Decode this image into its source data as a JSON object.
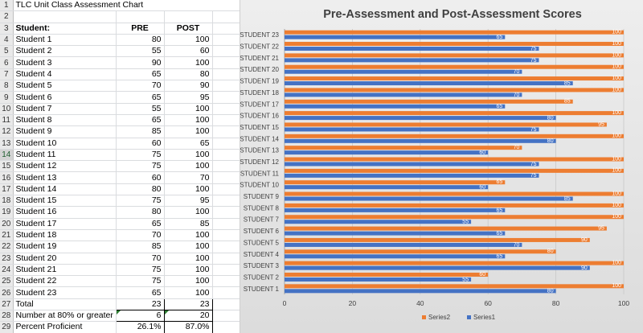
{
  "sheet": {
    "title": "TLC Unit Class Assessment Chart",
    "headers": {
      "label": "Student:",
      "pre": "PRE",
      "post": "POST"
    },
    "students": [
      {
        "name": "Student 1",
        "pre": "80",
        "post": "100"
      },
      {
        "name": "Student 2",
        "pre": "55",
        "post": "60"
      },
      {
        "name": "Student 3",
        "pre": "90",
        "post": "100"
      },
      {
        "name": "Student 4",
        "pre": "65",
        "post": "80"
      },
      {
        "name": "Student 5",
        "pre": "70",
        "post": "90"
      },
      {
        "name": "Student 6",
        "pre": "65",
        "post": "95"
      },
      {
        "name": "Student 7",
        "pre": "55",
        "post": "100"
      },
      {
        "name": "Student 8",
        "pre": "65",
        "post": "100"
      },
      {
        "name": "Student 9",
        "pre": "85",
        "post": "100"
      },
      {
        "name": "Student 10",
        "pre": "60",
        "post": "65"
      },
      {
        "name": "Student 11",
        "pre": "75",
        "post": "100"
      },
      {
        "name": "Student 12",
        "pre": "75",
        "post": "100"
      },
      {
        "name": "Student 13",
        "pre": "60",
        "post": "70"
      },
      {
        "name": "Student 14",
        "pre": "80",
        "post": "100"
      },
      {
        "name": "Student 15",
        "pre": "75",
        "post": "95"
      },
      {
        "name": "Student 16",
        "pre": "80",
        "post": "100"
      },
      {
        "name": "Student 17",
        "pre": "65",
        "post": "85"
      },
      {
        "name": "Student 18",
        "pre": "70",
        "post": "100"
      },
      {
        "name": "Student 19",
        "pre": "85",
        "post": "100"
      },
      {
        "name": "Student 20",
        "pre": "70",
        "post": "100"
      },
      {
        "name": "Student 21",
        "pre": "75",
        "post": "100"
      },
      {
        "name": "Student 22",
        "pre": "75",
        "post": "100"
      },
      {
        "name": "Student 23",
        "pre": "65",
        "post": "100"
      }
    ],
    "summary": {
      "total": {
        "label": "Total",
        "pre": "23",
        "post": "23"
      },
      "at80": {
        "label": "Number at 80% or greater",
        "pre": "6",
        "post": "20"
      },
      "proficient": {
        "label": "Percent Proficient",
        "pre": "26.1%",
        "post": "87.0%"
      }
    }
  },
  "colors": {
    "series1": "#4472c4",
    "series2": "#ed7d31",
    "text": "#404040",
    "grid": "#c8c8c8"
  },
  "chart_data": {
    "type": "bar",
    "orientation": "horizontal",
    "title": "Pre-Assessment and Post-Assessment Scores",
    "categories": [
      "STUDENT 1",
      "STUDENT 2",
      "STUDENT 3",
      "STUDENT 4",
      "STUDENT 5",
      "STUDENT 6",
      "STUDENT 7",
      "STUDENT 8",
      "STUDENT 9",
      "STUDENT 10",
      "STUDENT 11",
      "STUDENT 12",
      "STUDENT 13",
      "STUDENT 14",
      "STUDENT 15",
      "STUDENT 16",
      "STUDENT 17",
      "STUDENT 18",
      "STUDENT 19",
      "STUDENT 20",
      "STUDENT 21",
      "STUDENT 22",
      "STUDENT 23"
    ],
    "series": [
      {
        "name": "Series1",
        "values": [
          80,
          55,
          90,
          65,
          70,
          65,
          55,
          65,
          85,
          60,
          75,
          75,
          60,
          80,
          75,
          80,
          65,
          70,
          85,
          70,
          75,
          75,
          65
        ]
      },
      {
        "name": "Series2",
        "values": [
          100,
          60,
          100,
          80,
          90,
          95,
          100,
          100,
          100,
          65,
          100,
          100,
          70,
          100,
          95,
          100,
          85,
          100,
          100,
          100,
          100,
          100,
          100
        ]
      }
    ],
    "xlim": [
      0,
      100
    ],
    "xticks": [
      "0",
      "20",
      "40",
      "60",
      "80",
      "100"
    ],
    "grid": true,
    "data_labels": true,
    "legend": "bottom"
  }
}
